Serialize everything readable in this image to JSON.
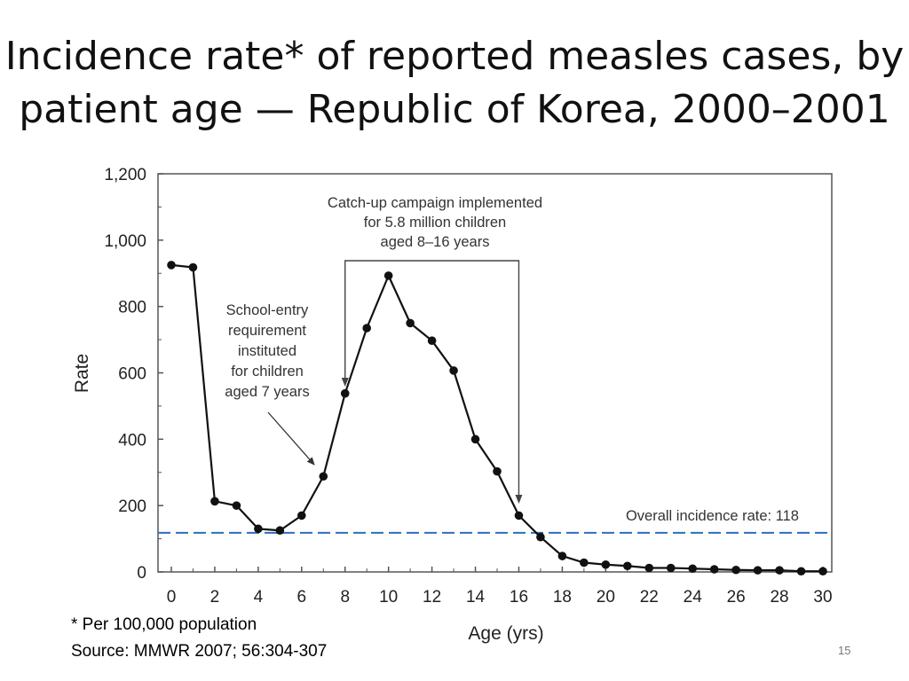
{
  "slide": {
    "title_line1": "Incidence rate* of reported measles cases, by",
    "title_line2": "patient age — Republic of Korea, 2000–2001",
    "footnote": "* Per 100,000 population",
    "source": "Source: MMWR 2007; 56:304-307",
    "page_number": "15"
  },
  "chart_data": {
    "type": "line",
    "xlabel": "Age (yrs)",
    "ylabel": "Rate",
    "xlim": [
      0,
      30
    ],
    "ylim": [
      0,
      1200
    ],
    "x_ticks": [
      0,
      2,
      4,
      6,
      8,
      10,
      12,
      14,
      16,
      18,
      20,
      22,
      24,
      26,
      28,
      30
    ],
    "y_tick_labels": [
      "0",
      "200",
      "400",
      "600",
      "800",
      "1,000",
      "1,200"
    ],
    "y_ticks": [
      0,
      200,
      400,
      600,
      800,
      1000,
      1200
    ],
    "series": [
      {
        "name": "Incidence rate",
        "x": [
          0,
          1,
          2,
          3,
          4,
          5,
          6,
          7,
          8,
          9,
          10,
          11,
          12,
          13,
          14,
          15,
          16,
          17,
          18,
          19,
          20,
          21,
          22,
          23,
          24,
          25,
          26,
          27,
          28,
          29,
          30
        ],
        "y": [
          925,
          918,
          213,
          200,
          130,
          125,
          170,
          288,
          538,
          735,
          893,
          750,
          697,
          607,
          400,
          303,
          170,
          105,
          48,
          28,
          22,
          18,
          12,
          12,
          10,
          8,
          6,
          5,
          5,
          2,
          2
        ]
      }
    ],
    "reference_line": {
      "value": 118,
      "label": "Overall incidence rate: 118",
      "color": "#2d6fb7"
    },
    "annotations": [
      {
        "id": "catchup",
        "lines": [
          "Catch-up campaign implemented",
          "for 5.8 million children",
          "aged 8–16 years"
        ],
        "bracket_x": [
          8,
          16
        ]
      },
      {
        "id": "school-entry",
        "lines": [
          "School-entry",
          "requirement",
          "instituted",
          "for children",
          "aged 7 years"
        ],
        "arrow_target_x": 7
      }
    ],
    "colors": {
      "line": "#111111",
      "axis": "#444444",
      "reference": "#2d6fb7"
    }
  }
}
